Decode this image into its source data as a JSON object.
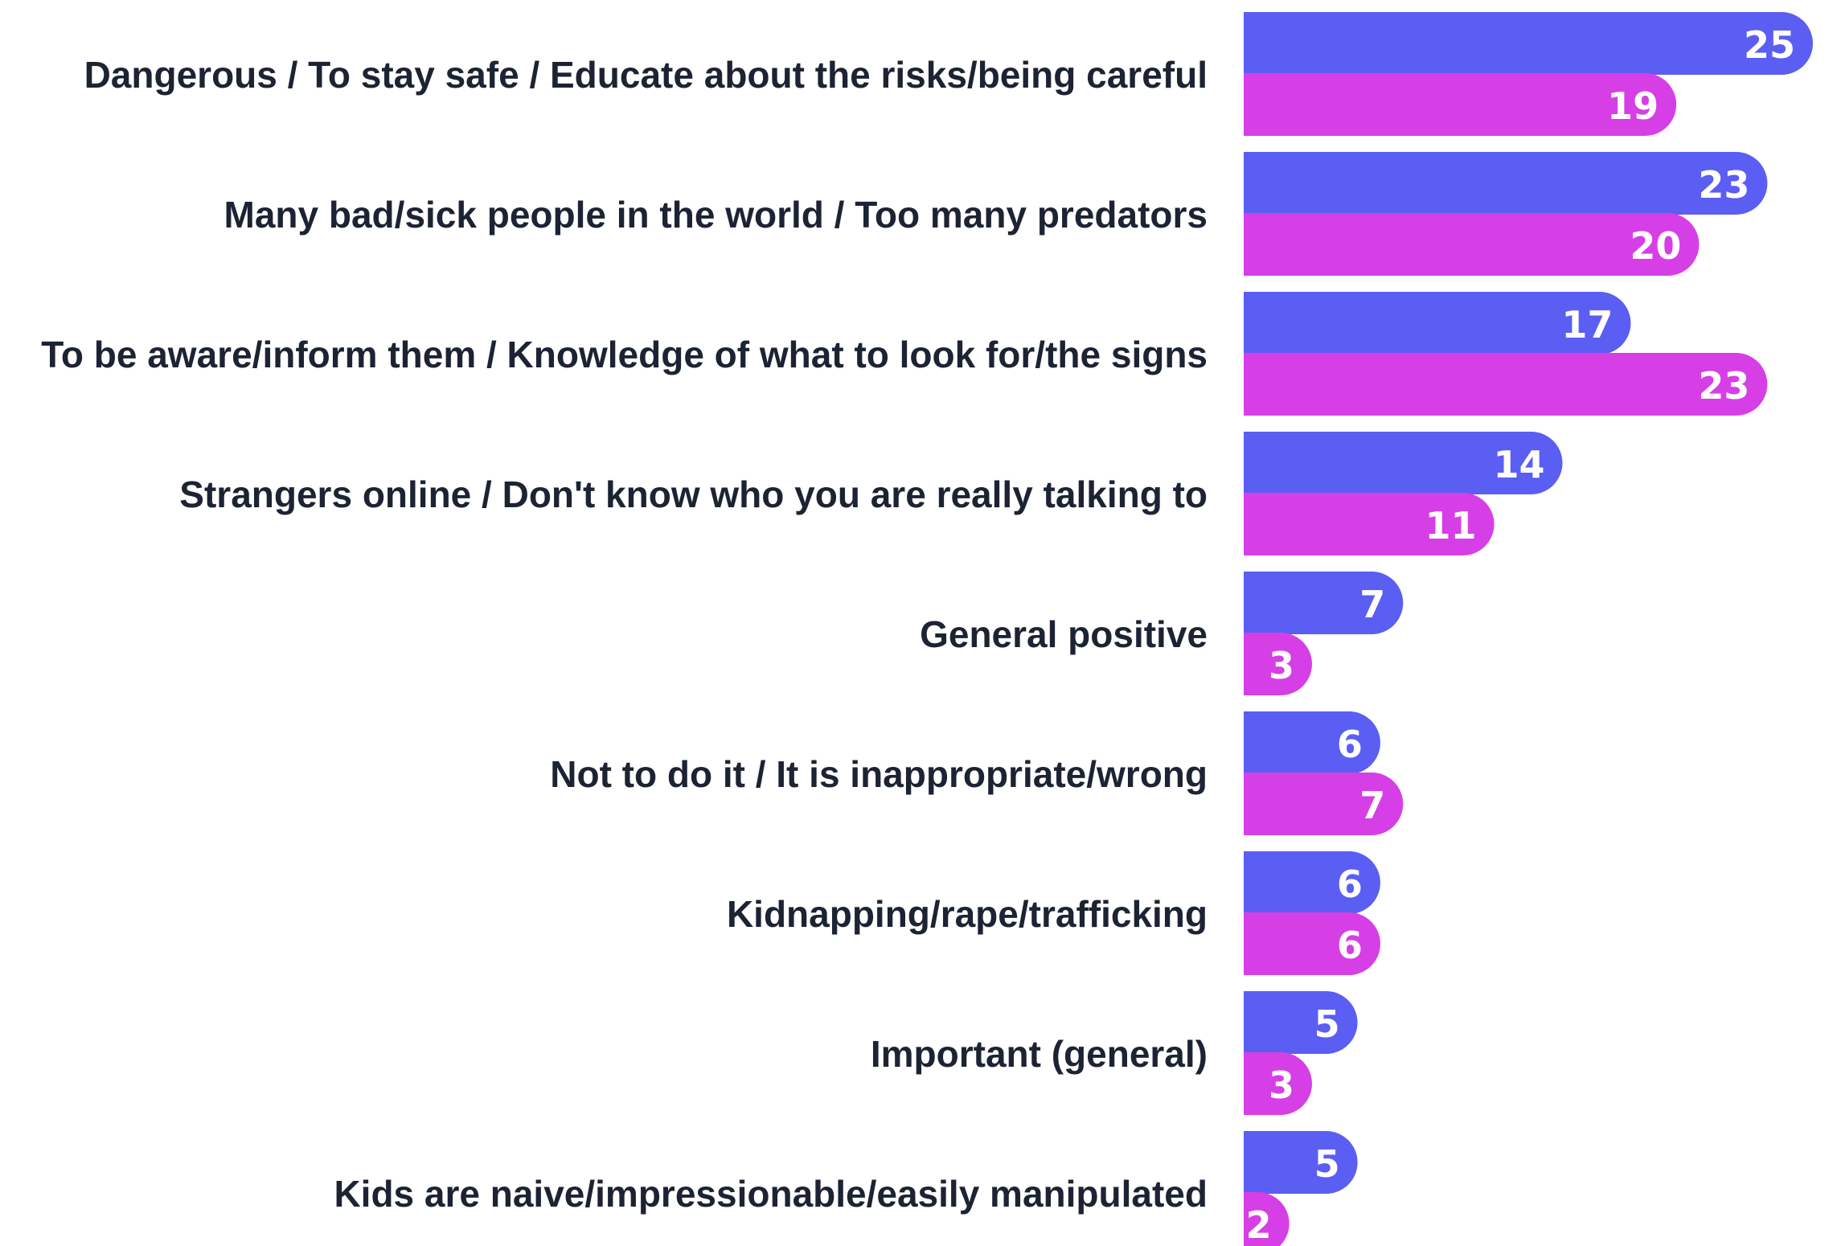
{
  "chart_data": {
    "type": "bar",
    "orientation": "horizontal",
    "categories": [
      "Dangerous / To stay safe / Educate about the risks/being careful",
      "Many bad/sick people in the world / Too many predators",
      "To be aware/inform them / Knowledge of what to look for/the signs",
      "Strangers online / Don't know who you are really talking to",
      "General positive",
      "Not to do it / It is inappropriate/wrong",
      "Kidnapping/rape/trafficking",
      "Important (general)",
      "Kids are naive/impressionable/easily manipulated"
    ],
    "series": [
      {
        "color": "#5b5ef2",
        "values": [
          25,
          23,
          17,
          14,
          7,
          6,
          6,
          5,
          5
        ]
      },
      {
        "color": "#d63fe6",
        "values": [
          19,
          20,
          23,
          11,
          3,
          7,
          6,
          3,
          2
        ]
      }
    ],
    "xlim": [
      0,
      25
    ],
    "grid": false,
    "legend": "none",
    "title": "",
    "xlabel": "",
    "ylabel": ""
  }
}
